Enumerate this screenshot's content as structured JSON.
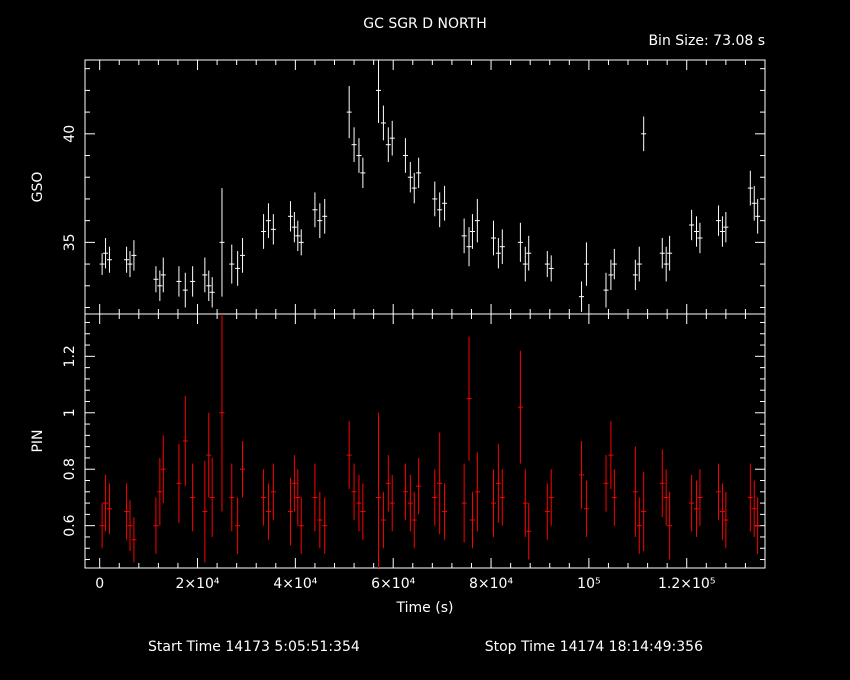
{
  "chart_data": [
    {
      "type": "scatter",
      "title": "GC SGR D NORTH",
      "subtitle": "Bin Size: 73.08 s",
      "ylabel": "GSO",
      "xlabel": "",
      "xlim": [
        -3000,
        136000
      ],
      "ylim": [
        31.7,
        43.4
      ],
      "yticks": [
        {
          "value": 35,
          "label": "35"
        },
        {
          "value": 40,
          "label": "40"
        }
      ],
      "grid": false,
      "color": "#ffffff",
      "series": [
        {
          "x": [
            500,
            1200,
            2000,
            5500,
            6200,
            7000,
            11500,
            12300,
            13000,
            16200,
            17500,
            19000,
            21500,
            22300,
            23000,
            25000,
            27000,
            28200,
            29200,
            33500,
            34500,
            35500,
            39000,
            39800,
            40500,
            41200,
            44000,
            45000,
            46000,
            51000,
            52000,
            53000,
            53800,
            57000,
            58000,
            59000,
            59800,
            62500,
            63500,
            64300,
            65200,
            68500,
            69500,
            70500,
            74500,
            75500,
            76200,
            77200,
            80500,
            81500,
            82300,
            86000,
            87000,
            87700,
            91500,
            92300,
            98500,
            99500,
            103500,
            104500,
            105200,
            109500,
            110300,
            111200,
            115000,
            115800,
            116500,
            121000,
            122000,
            122700,
            126500,
            127300,
            128000,
            133000,
            133800,
            134500
          ],
          "values": [
            34.0,
            34.5,
            34.2,
            34.2,
            34.0,
            34.4,
            33.3,
            33.0,
            33.5,
            33.2,
            32.8,
            33.2,
            33.5,
            33.0,
            32.7,
            35.0,
            34.0,
            33.8,
            34.4,
            35.5,
            36.0,
            35.6,
            36.2,
            35.7,
            35.3,
            35.0,
            36.5,
            36.0,
            36.2,
            41.0,
            39.5,
            39.0,
            38.2,
            42.0,
            40.5,
            39.5,
            39.8,
            39.0,
            38.0,
            37.5,
            38.2,
            37.0,
            36.5,
            36.8,
            35.3,
            34.8,
            35.5,
            36.0,
            35.2,
            34.5,
            34.8,
            35.0,
            34.0,
            34.5,
            34.0,
            33.8,
            32.5,
            34.0,
            32.8,
            33.5,
            34.0,
            33.5,
            34.0,
            40.0,
            34.5,
            34.0,
            34.5,
            35.8,
            35.5,
            35.2,
            36.0,
            35.5,
            35.7,
            37.5,
            36.8,
            36.2
          ],
          "errors": [
            0.5,
            0.7,
            0.6,
            0.6,
            0.6,
            0.7,
            0.6,
            0.7,
            0.8,
            0.7,
            0.8,
            0.7,
            0.8,
            0.7,
            0.7,
            2.5,
            0.9,
            0.8,
            0.8,
            0.8,
            0.8,
            0.7,
            0.7,
            0.7,
            0.7,
            0.6,
            0.8,
            0.8,
            0.8,
            1.2,
            0.8,
            0.8,
            0.7,
            1.5,
            0.8,
            0.8,
            0.8,
            0.8,
            0.7,
            0.7,
            0.7,
            0.8,
            0.8,
            0.8,
            0.8,
            0.9,
            0.8,
            1.0,
            0.8,
            0.7,
            0.8,
            0.9,
            0.8,
            0.8,
            0.6,
            0.6,
            0.7,
            1.0,
            0.8,
            0.7,
            0.7,
            0.7,
            0.8,
            0.8,
            0.7,
            0.8,
            0.8,
            0.7,
            0.7,
            0.7,
            0.7,
            0.7,
            0.7,
            0.8,
            0.8,
            0.8
          ]
        }
      ]
    },
    {
      "type": "scatter",
      "ylabel": "PIN",
      "xlabel": "Time (s)",
      "xlim": [
        -3000,
        136000
      ],
      "ylim": [
        0.45,
        1.35
      ],
      "yticks": [
        {
          "value": 0.6,
          "label": "0.6"
        },
        {
          "value": 0.8,
          "label": "0.8"
        },
        {
          "value": 1.0,
          "label": "1"
        },
        {
          "value": 1.2,
          "label": "1.2"
        }
      ],
      "xticks": [
        {
          "value": 0,
          "label": "0"
        },
        {
          "value": 20000,
          "label": "2×10⁴"
        },
        {
          "value": 40000,
          "label": "4×10⁴"
        },
        {
          "value": 60000,
          "label": "6×10⁴"
        },
        {
          "value": 80000,
          "label": "8×10⁴"
        },
        {
          "value": 100000,
          "label": "10⁵"
        },
        {
          "value": 120000,
          "label": "1.2×10⁵"
        }
      ],
      "grid": false,
      "color": "#ff0000",
      "series": [
        {
          "x": [
            500,
            1200,
            2000,
            5500,
            6200,
            7000,
            11500,
            12300,
            13000,
            16200,
            17500,
            19000,
            21500,
            22300,
            23000,
            25000,
            27000,
            28200,
            29200,
            33500,
            34500,
            35500,
            39000,
            39800,
            40500,
            41200,
            44000,
            45000,
            46000,
            51000,
            52000,
            53000,
            53800,
            57000,
            58000,
            59000,
            59800,
            62500,
            63500,
            64300,
            65200,
            68500,
            69500,
            70500,
            74500,
            75500,
            76200,
            77200,
            80500,
            81500,
            82300,
            86000,
            87000,
            87700,
            91500,
            92300,
            98500,
            99500,
            103500,
            104500,
            105200,
            109500,
            110300,
            111200,
            115000,
            115800,
            116500,
            121000,
            122000,
            122700,
            126500,
            127300,
            128000,
            133000,
            133800,
            134500
          ],
          "values": [
            0.6,
            0.68,
            0.66,
            0.65,
            0.6,
            0.55,
            0.6,
            0.72,
            0.8,
            0.75,
            0.9,
            0.7,
            0.65,
            0.85,
            0.7,
            1.0,
            0.7,
            0.6,
            0.8,
            0.7,
            0.65,
            0.72,
            0.65,
            0.75,
            0.7,
            0.6,
            0.7,
            0.62,
            0.6,
            0.85,
            0.72,
            0.68,
            0.65,
            0.7,
            0.62,
            0.75,
            0.68,
            0.72,
            0.68,
            0.62,
            0.74,
            0.7,
            0.75,
            0.65,
            0.68,
            1.05,
            0.62,
            0.72,
            0.68,
            0.75,
            0.7,
            1.02,
            0.68,
            0.58,
            0.65,
            0.7,
            0.78,
            0.66,
            0.75,
            0.85,
            0.7,
            0.72,
            0.6,
            0.65,
            0.75,
            0.7,
            0.6,
            0.68,
            0.66,
            0.7,
            0.72,
            0.65,
            0.62,
            0.7,
            0.66,
            0.6
          ],
          "errors": [
            0.08,
            0.1,
            0.09,
            0.1,
            0.09,
            0.08,
            0.1,
            0.12,
            0.12,
            0.14,
            0.16,
            0.12,
            0.18,
            0.15,
            0.14,
            0.35,
            0.12,
            0.1,
            0.1,
            0.1,
            0.1,
            0.1,
            0.12,
            0.1,
            0.1,
            0.1,
            0.12,
            0.1,
            0.1,
            0.12,
            0.1,
            0.1,
            0.1,
            0.3,
            0.1,
            0.1,
            0.1,
            0.1,
            0.1,
            0.1,
            0.1,
            0.1,
            0.18,
            0.1,
            0.14,
            0.22,
            0.1,
            0.14,
            0.12,
            0.14,
            0.1,
            0.2,
            0.12,
            0.1,
            0.1,
            0.1,
            0.12,
            0.1,
            0.1,
            0.12,
            0.1,
            0.16,
            0.1,
            0.14,
            0.12,
            0.1,
            0.12,
            0.1,
            0.1,
            0.1,
            0.1,
            0.1,
            0.1,
            0.12,
            0.1,
            0.1
          ]
        }
      ]
    }
  ],
  "footer": {
    "start_label": "Start Time 14173  5:05:51:354",
    "stop_label": "Stop Time 14174 18:14:49:356"
  }
}
